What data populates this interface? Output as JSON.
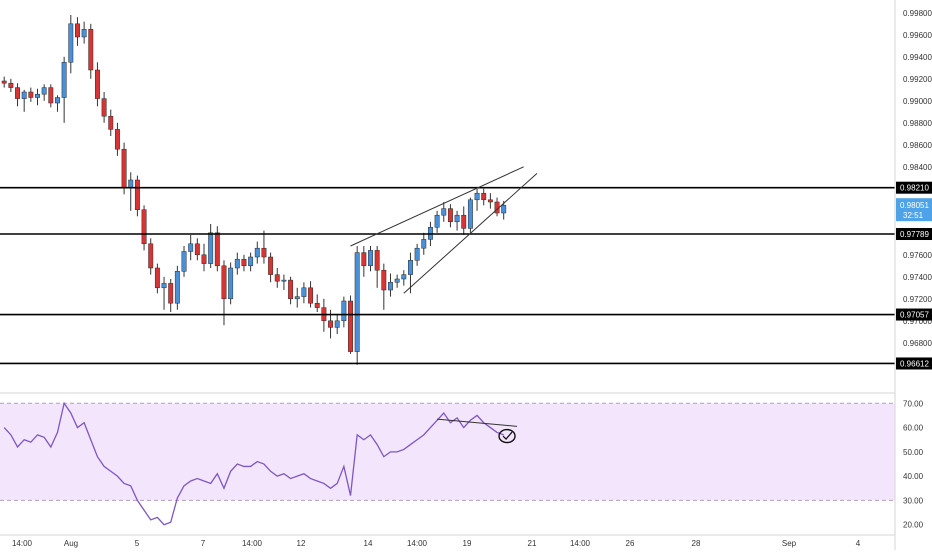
{
  "colors": {
    "up": "#4a90d9",
    "down": "#d93434",
    "wick": "#333333",
    "level": "#000000",
    "rsi_line": "#7e57c2",
    "rsi_band": "#f3e5fb",
    "axis_text": "#333333",
    "current_price_bg": "#4ea3e8"
  },
  "chart_data": [
    {
      "type": "candlestick",
      "title": "",
      "x_tick_labels": [
        "14:00",
        "Aug",
        "5",
        "7",
        "14:00",
        "12",
        "14",
        "14:00",
        "19",
        "21",
        "14:00",
        "26",
        "28",
        "Sep",
        "4"
      ],
      "y_tick_labels": [
        "0.99800",
        "0.99600",
        "0.99400",
        "0.99200",
        "0.99000",
        "0.98800",
        "0.98600",
        "0.98400",
        "0.97600",
        "0.97400",
        "0.97200",
        "0.97000",
        "0.96800"
      ],
      "ylim": [
        0.9648,
        0.9988
      ],
      "horizontal_levels": [
        {
          "value": 0.9821,
          "label": "0.98210"
        },
        {
          "value": 0.97789,
          "label": "0.97789"
        },
        {
          "value": 0.97057,
          "label": "0.97057"
        },
        {
          "value": 0.96612,
          "label": "0.96612"
        }
      ],
      "current_price": {
        "value": 0.98051,
        "label": "0.98051",
        "countdown": "32:51"
      },
      "candles": [
        [
          0.9918,
          0.9922,
          0.9912,
          0.9916
        ],
        [
          0.9916,
          0.992,
          0.9908,
          0.9912
        ],
        [
          0.9912,
          0.9916,
          0.9895,
          0.9902
        ],
        [
          0.9902,
          0.991,
          0.989,
          0.9908
        ],
        [
          0.9908,
          0.9912,
          0.9899,
          0.9903
        ],
        [
          0.9903,
          0.9911,
          0.9896,
          0.9906
        ],
        [
          0.9906,
          0.9915,
          0.99,
          0.9912
        ],
        [
          0.9912,
          0.9915,
          0.9894,
          0.9898
        ],
        [
          0.9898,
          0.9905,
          0.989,
          0.9903
        ],
        [
          0.9903,
          0.994,
          0.988,
          0.9935
        ],
        [
          0.9935,
          0.9978,
          0.9925,
          0.997
        ],
        [
          0.997,
          0.9976,
          0.995,
          0.9958
        ],
        [
          0.9958,
          0.9972,
          0.9952,
          0.9965
        ],
        [
          0.9965,
          0.997,
          0.992,
          0.9928
        ],
        [
          0.9928,
          0.9935,
          0.9895,
          0.9902
        ],
        [
          0.9902,
          0.9908,
          0.988,
          0.9886
        ],
        [
          0.9886,
          0.9892,
          0.9868,
          0.9874
        ],
        [
          0.9874,
          0.988,
          0.985,
          0.9856
        ],
        [
          0.9856,
          0.9862,
          0.9815,
          0.9821
        ],
        [
          0.9821,
          0.9835,
          0.98,
          0.9828
        ],
        [
          0.9828,
          0.9832,
          0.9795,
          0.9801
        ],
        [
          0.9801,
          0.9805,
          0.9764,
          0.977
        ],
        [
          0.977,
          0.9775,
          0.9742,
          0.9748
        ],
        [
          0.9748,
          0.9752,
          0.9725,
          0.973
        ],
        [
          0.973,
          0.974,
          0.971,
          0.9734
        ],
        [
          0.9734,
          0.9738,
          0.9708,
          0.9716
        ],
        [
          0.9716,
          0.975,
          0.971,
          0.9745
        ],
        [
          0.9745,
          0.9768,
          0.974,
          0.9763
        ],
        [
          0.9763,
          0.9778,
          0.9755,
          0.977
        ],
        [
          0.977,
          0.9775,
          0.9755,
          0.976
        ],
        [
          0.976,
          0.977,
          0.9745,
          0.9752
        ],
        [
          0.9752,
          0.9788,
          0.9748,
          0.978
        ],
        [
          0.978,
          0.9786,
          0.9745,
          0.975
        ],
        [
          0.975,
          0.9755,
          0.9696,
          0.972
        ],
        [
          0.972,
          0.9753,
          0.9715,
          0.9748
        ],
        [
          0.9748,
          0.9762,
          0.9742,
          0.9756
        ],
        [
          0.9756,
          0.976,
          0.9745,
          0.975
        ],
        [
          0.975,
          0.9762,
          0.9745,
          0.9758
        ],
        [
          0.9758,
          0.9772,
          0.9752,
          0.9766
        ],
        [
          0.9766,
          0.9782,
          0.9752,
          0.9758
        ],
        [
          0.9758,
          0.9762,
          0.9735,
          0.9742
        ],
        [
          0.9742,
          0.9748,
          0.973,
          0.9736
        ],
        [
          0.9736,
          0.9742,
          0.9728,
          0.9737
        ],
        [
          0.9737,
          0.974,
          0.9715,
          0.972
        ],
        [
          0.972,
          0.973,
          0.9712,
          0.9722
        ],
        [
          0.9722,
          0.9735,
          0.9716,
          0.973
        ],
        [
          0.973,
          0.9736,
          0.9712,
          0.9716
        ],
        [
          0.9716,
          0.9724,
          0.9708,
          0.9712
        ],
        [
          0.9712,
          0.972,
          0.969,
          0.97
        ],
        [
          0.97,
          0.971,
          0.9684,
          0.9694
        ],
        [
          0.9694,
          0.9706,
          0.9688,
          0.97
        ],
        [
          0.97,
          0.9722,
          0.9694,
          0.9718
        ],
        [
          0.9718,
          0.9723,
          0.967,
          0.9672
        ],
        [
          0.9672,
          0.9768,
          0.966,
          0.9762
        ],
        [
          0.9762,
          0.9768,
          0.974,
          0.975
        ],
        [
          0.975,
          0.9768,
          0.9745,
          0.9764
        ],
        [
          0.9764,
          0.9768,
          0.973,
          0.9746
        ],
        [
          0.9746,
          0.9752,
          0.971,
          0.9728
        ],
        [
          0.9728,
          0.9743,
          0.9722,
          0.9735
        ],
        [
          0.9735,
          0.9742,
          0.973,
          0.9738
        ],
        [
          0.9738,
          0.9746,
          0.9732,
          0.9742
        ],
        [
          0.9742,
          0.9762,
          0.9725,
          0.9755
        ],
        [
          0.9755,
          0.977,
          0.975,
          0.9766
        ],
        [
          0.9766,
          0.978,
          0.976,
          0.9774
        ],
        [
          0.9774,
          0.979,
          0.9768,
          0.9785
        ],
        [
          0.9785,
          0.98,
          0.978,
          0.9796
        ],
        [
          0.9796,
          0.9808,
          0.979,
          0.9802
        ],
        [
          0.9802,
          0.9806,
          0.9785,
          0.979
        ],
        [
          0.979,
          0.98,
          0.9782,
          0.9796
        ],
        [
          0.9796,
          0.9804,
          0.9778,
          0.9784
        ],
        [
          0.9784,
          0.9812,
          0.978,
          0.981
        ],
        [
          0.981,
          0.982,
          0.98,
          0.9816
        ],
        [
          0.9816,
          0.982,
          0.9805,
          0.981
        ],
        [
          0.981,
          0.9816,
          0.9802,
          0.9808
        ],
        [
          0.9808,
          0.9812,
          0.9795,
          0.9798
        ],
        [
          0.9798,
          0.9809,
          0.9792,
          0.9805
        ]
      ]
    },
    {
      "type": "line",
      "title": "",
      "y_tick_labels": [
        "70.00",
        "60.00",
        "50.00",
        "40.00",
        "30.00",
        "20.00"
      ],
      "ylim": [
        17,
        73
      ],
      "band": [
        30,
        70
      ],
      "values": [
        60,
        57,
        52,
        55,
        54,
        57,
        56,
        52,
        58,
        70,
        66,
        60,
        62,
        55,
        48,
        44,
        42,
        40,
        37,
        36,
        30,
        26,
        22,
        23,
        20,
        21,
        31,
        36,
        38,
        39,
        38,
        37,
        41,
        35,
        42,
        45,
        44,
        44,
        46,
        45,
        42,
        40,
        41,
        39,
        40,
        41,
        39,
        38,
        37,
        35,
        37,
        44,
        32,
        57,
        55,
        57,
        53,
        48,
        50,
        50,
        51,
        53,
        55,
        57,
        60,
        63,
        66,
        62,
        64,
        60,
        63,
        65,
        62,
        60,
        58,
        57
      ]
    }
  ]
}
